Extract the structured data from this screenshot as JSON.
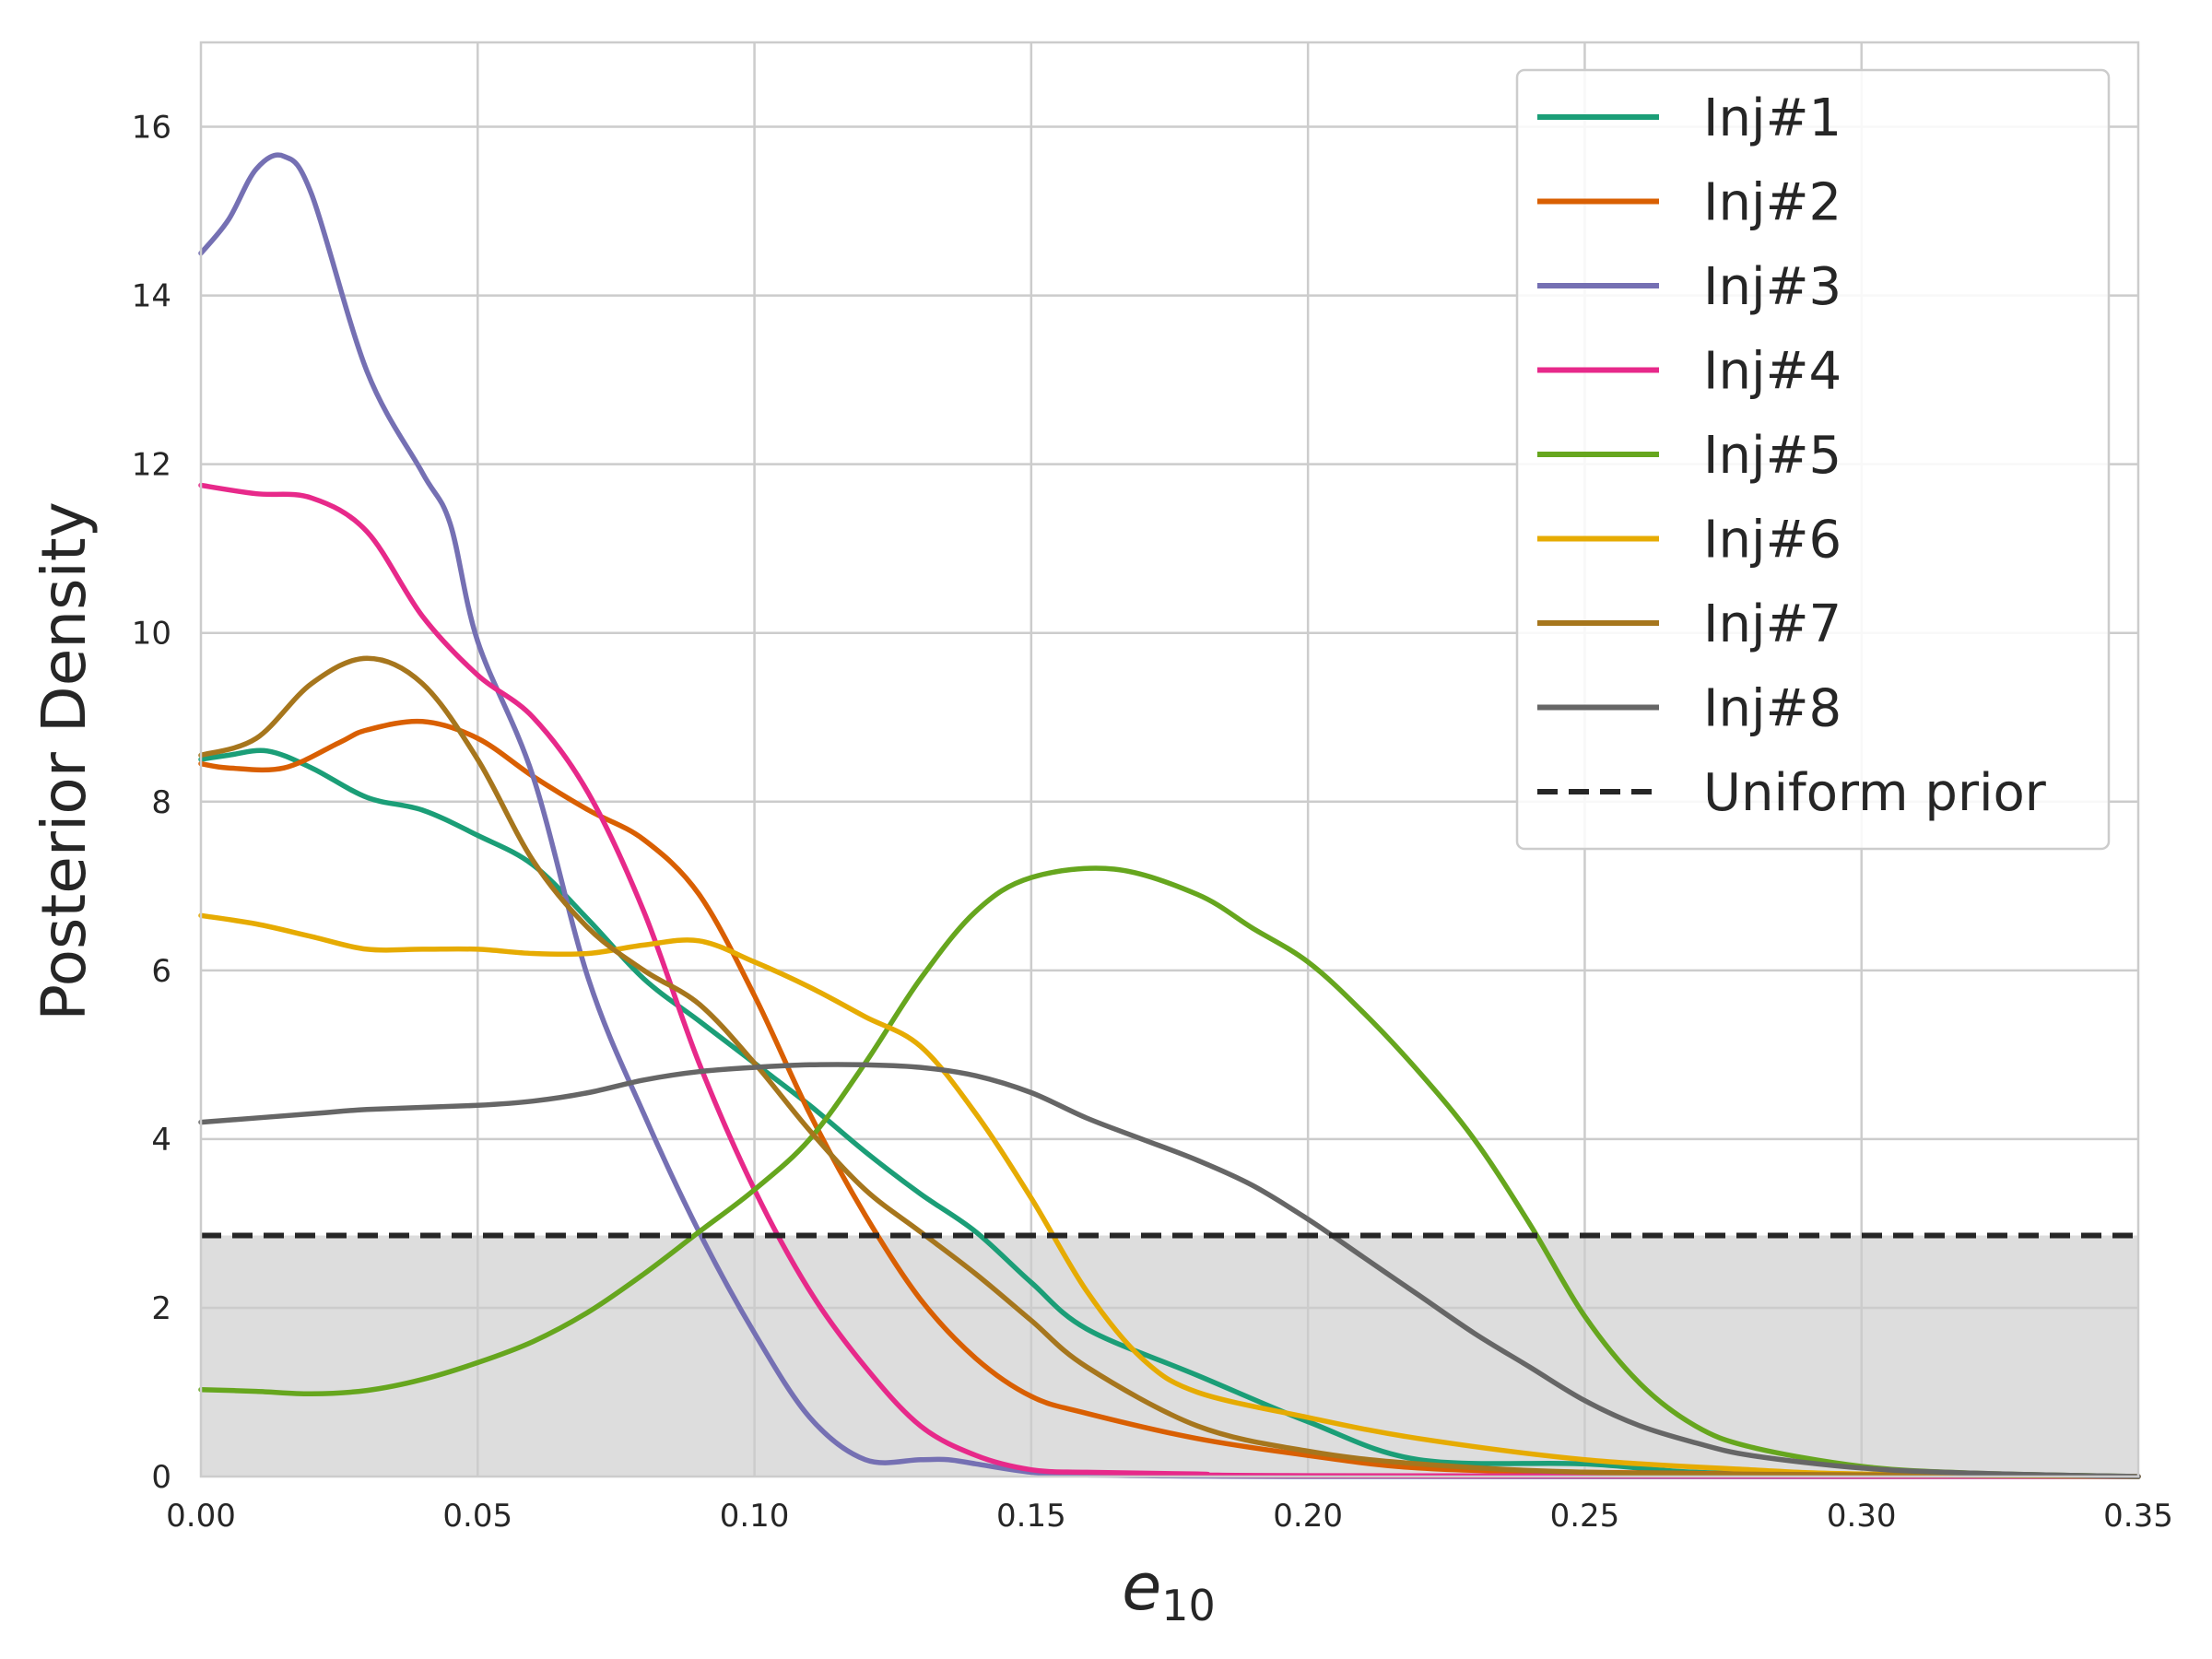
{
  "chart_data": {
    "type": "line",
    "xlabel": "e",
    "xlabel_sub": "10",
    "ylabel": "Posterior Density",
    "xlim": [
      0.0,
      0.35
    ],
    "ylim": [
      0,
      17
    ],
    "xticks": [
      "0.00",
      "0.05",
      "0.10",
      "0.15",
      "0.20",
      "0.25",
      "0.30",
      "0.35"
    ],
    "yticks": [
      "0",
      "2",
      "4",
      "6",
      "8",
      "10",
      "12",
      "14",
      "16"
    ],
    "grid": true,
    "legend_position": "top-right",
    "prior": {
      "name": "Uniform prior",
      "value": 2.857,
      "color": "#262626",
      "fill_color": "#dddddd"
    },
    "series": [
      {
        "name": "Inj#1",
        "color": "#1b9e77",
        "x": [
          0,
          0.005,
          0.012,
          0.02,
          0.03,
          0.04,
          0.05,
          0.06,
          0.07,
          0.08,
          0.09,
          0.1,
          0.11,
          0.12,
          0.13,
          0.14,
          0.15,
          0.16,
          0.18,
          0.2,
          0.22,
          0.25,
          0.27,
          0.3,
          0.35
        ],
        "y": [
          8.5,
          8.55,
          8.6,
          8.4,
          8.05,
          7.9,
          7.6,
          7.25,
          6.6,
          5.9,
          5.4,
          4.9,
          4.4,
          3.85,
          3.35,
          2.9,
          2.3,
          1.75,
          1.2,
          0.65,
          0.2,
          0.15,
          0.05,
          0.02,
          0.0
        ]
      },
      {
        "name": "Inj#2",
        "color": "#d95f02",
        "x": [
          0,
          0.005,
          0.015,
          0.025,
          0.03,
          0.04,
          0.05,
          0.06,
          0.07,
          0.08,
          0.09,
          0.1,
          0.11,
          0.12,
          0.13,
          0.14,
          0.15,
          0.16,
          0.18,
          0.2,
          0.22,
          0.25,
          0.3,
          0.35
        ],
        "y": [
          8.45,
          8.4,
          8.4,
          8.7,
          8.85,
          8.95,
          8.75,
          8.3,
          7.9,
          7.55,
          6.9,
          5.7,
          4.3,
          3.1,
          2.1,
          1.4,
          0.95,
          0.75,
          0.45,
          0.25,
          0.1,
          0.05,
          0.02,
          0.0
        ]
      },
      {
        "name": "Inj#3",
        "color": "#7570b3",
        "x": [
          0,
          0.005,
          0.01,
          0.015,
          0.02,
          0.03,
          0.04,
          0.045,
          0.05,
          0.06,
          0.07,
          0.08,
          0.09,
          0.1,
          0.11,
          0.12,
          0.13,
          0.135,
          0.14,
          0.15,
          0.16,
          0.2,
          0.35
        ],
        "y": [
          14.5,
          14.9,
          15.5,
          15.65,
          15.2,
          13.1,
          11.9,
          11.3,
          9.9,
          8.3,
          5.9,
          4.3,
          2.9,
          1.7,
          0.7,
          0.2,
          0.2,
          0.2,
          0.15,
          0.05,
          0.02,
          0.0,
          0.0
        ]
      },
      {
        "name": "Inj#4",
        "color": "#e7298a",
        "x": [
          0,
          0.01,
          0.02,
          0.03,
          0.04,
          0.05,
          0.06,
          0.07,
          0.08,
          0.09,
          0.1,
          0.11,
          0.12,
          0.13,
          0.14,
          0.15,
          0.16,
          0.18,
          0.2,
          0.35
        ],
        "y": [
          11.75,
          11.65,
          11.6,
          11.2,
          10.2,
          9.5,
          9.0,
          8.1,
          6.7,
          4.9,
          3.4,
          2.2,
          1.3,
          0.6,
          0.25,
          0.08,
          0.05,
          0.03,
          0.01,
          0.0
        ]
      },
      {
        "name": "Inj#5",
        "color": "#66a61e",
        "x": [
          0,
          0.01,
          0.02,
          0.03,
          0.04,
          0.05,
          0.06,
          0.07,
          0.08,
          0.09,
          0.1,
          0.11,
          0.12,
          0.13,
          0.14,
          0.15,
          0.165,
          0.18,
          0.19,
          0.2,
          0.21,
          0.22,
          0.23,
          0.24,
          0.25,
          0.26,
          0.27,
          0.28,
          0.3,
          0.32,
          0.35
        ],
        "y": [
          1.03,
          1.01,
          0.98,
          1.02,
          1.15,
          1.35,
          1.6,
          1.95,
          2.4,
          2.9,
          3.4,
          4.0,
          4.9,
          5.9,
          6.7,
          7.1,
          7.2,
          6.9,
          6.5,
          6.1,
          5.5,
          4.8,
          4.0,
          3.0,
          1.9,
          1.1,
          0.6,
          0.35,
          0.12,
          0.04,
          0.0
        ]
      },
      {
        "name": "Inj#6",
        "color": "#e6ab02",
        "x": [
          0,
          0.01,
          0.02,
          0.03,
          0.04,
          0.05,
          0.06,
          0.07,
          0.08,
          0.09,
          0.1,
          0.11,
          0.12,
          0.13,
          0.14,
          0.15,
          0.16,
          0.17,
          0.18,
          0.2,
          0.22,
          0.25,
          0.28,
          0.3,
          0.35
        ],
        "y": [
          6.65,
          6.55,
          6.4,
          6.25,
          6.25,
          6.25,
          6.2,
          6.2,
          6.3,
          6.35,
          6.1,
          5.8,
          5.45,
          5.1,
          4.3,
          3.3,
          2.2,
          1.4,
          1.0,
          0.7,
          0.45,
          0.2,
          0.08,
          0.03,
          0.0
        ]
      },
      {
        "name": "Inj#7",
        "color": "#a6761d",
        "x": [
          0,
          0.01,
          0.02,
          0.03,
          0.04,
          0.05,
          0.06,
          0.07,
          0.08,
          0.09,
          0.1,
          0.11,
          0.12,
          0.13,
          0.14,
          0.15,
          0.16,
          0.18,
          0.2,
          0.22,
          0.25,
          0.3,
          0.35
        ],
        "y": [
          8.55,
          8.75,
          9.4,
          9.7,
          9.4,
          8.5,
          7.3,
          6.5,
          6.0,
          5.6,
          4.9,
          4.1,
          3.4,
          2.9,
          2.4,
          1.85,
          1.3,
          0.6,
          0.3,
          0.15,
          0.05,
          0.02,
          0.0
        ]
      },
      {
        "name": "Inj#8",
        "color": "#666666",
        "x": [
          0,
          0.02,
          0.03,
          0.05,
          0.06,
          0.07,
          0.08,
          0.09,
          0.1,
          0.11,
          0.12,
          0.13,
          0.14,
          0.15,
          0.16,
          0.17,
          0.18,
          0.19,
          0.2,
          0.21,
          0.22,
          0.23,
          0.24,
          0.25,
          0.26,
          0.27,
          0.28,
          0.3,
          0.32,
          0.35
        ],
        "y": [
          4.2,
          4.3,
          4.35,
          4.4,
          4.45,
          4.55,
          4.7,
          4.8,
          4.85,
          4.88,
          4.88,
          4.85,
          4.75,
          4.55,
          4.25,
          4.0,
          3.75,
          3.45,
          3.05,
          2.6,
          2.15,
          1.7,
          1.3,
          0.9,
          0.6,
          0.4,
          0.25,
          0.1,
          0.04,
          0.0
        ]
      }
    ]
  }
}
